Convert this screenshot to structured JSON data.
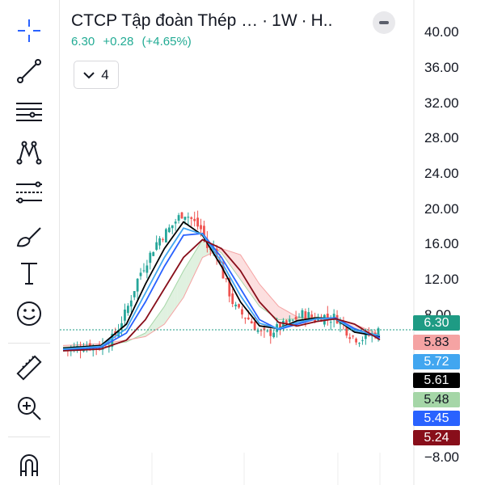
{
  "header": {
    "symbol": "CTCP Tập đoàn Thép …",
    "sep1": "·",
    "interval": "1W",
    "sep2": "·",
    "exchange": "H..",
    "last": "6.30",
    "change": "+0.28",
    "change_pct": "(+4.65%)"
  },
  "indicators_toggle": {
    "count": "4"
  },
  "toolbar": {
    "tools": [
      "crosshair-icon",
      "trend-line-icon",
      "horizontal-lines-icon",
      "pattern-icon",
      "fib-retracement-icon",
      "brush-icon",
      "text-icon",
      "emoji-icon",
      "ruler-icon",
      "zoom-in-icon",
      "magnet-icon"
    ]
  },
  "y_axis": {
    "ticks": [
      "40.00",
      "36.00",
      "32.00",
      "28.00",
      "24.00",
      "20.00",
      "16.00",
      "12.00",
      "8.00",
      "−8.00"
    ]
  },
  "price_labels": [
    {
      "value": "6.30",
      "bg": "#1e9b84",
      "fg": "#ffffff"
    },
    {
      "value": "5.83",
      "bg": "#f5a3a3",
      "fg": "#131722"
    },
    {
      "value": "5.72",
      "bg": "#41a6f0",
      "fg": "#ffffff"
    },
    {
      "value": "5.61",
      "bg": "#000000",
      "fg": "#ffffff"
    },
    {
      "value": "5.48",
      "bg": "#a5d6a7",
      "fg": "#131722"
    },
    {
      "value": "5.45",
      "bg": "#2962ff",
      "fg": "#ffffff"
    },
    {
      "value": "5.24",
      "bg": "#880e1a",
      "fg": "#ffffff"
    }
  ],
  "colors": {
    "up": "#26a69a",
    "down": "#ef5350",
    "cloud_green": "#a5d6a7",
    "cloud_red": "#f5a3a3",
    "ma_black": "#000000",
    "ma_blue": "#2962ff",
    "ma_lightblue": "#41a6f0",
    "ma_maroon": "#880e1a"
  },
  "chart_data": {
    "type": "candlestick",
    "title": "CTCP Tập đoàn Thép …",
    "interval": "1W",
    "last_price": 6.3,
    "ylim": [
      -8,
      40
    ],
    "ticks": [
      40,
      36,
      32,
      28,
      24,
      20,
      16,
      12,
      8,
      -8
    ],
    "close_path": [
      [
        0,
        4.2
      ],
      [
        4,
        4.3
      ],
      [
        8,
        4.6
      ],
      [
        12,
        4.5
      ],
      [
        16,
        5.5
      ],
      [
        20,
        8.5
      ],
      [
        22,
        10.5
      ],
      [
        24,
        12.5
      ],
      [
        27,
        14.5
      ],
      [
        30,
        16.5
      ],
      [
        33,
        17.5
      ],
      [
        36,
        18.8
      ],
      [
        38,
        19.6
      ],
      [
        40,
        19.0
      ],
      [
        42,
        18.2
      ],
      [
        44,
        17.5
      ],
      [
        46,
        15.0
      ],
      [
        48,
        15.8
      ],
      [
        50,
        13.0
      ],
      [
        52,
        11.0
      ],
      [
        54,
        9.0
      ],
      [
        56,
        8.2
      ],
      [
        58,
        7.8
      ],
      [
        60,
        7.0
      ],
      [
        62,
        6.0
      ],
      [
        64,
        5.8
      ],
      [
        66,
        6.2
      ],
      [
        68,
        6.6
      ],
      [
        70,
        6.9
      ],
      [
        72,
        7.2
      ],
      [
        74,
        7.8
      ],
      [
        76,
        8.2
      ],
      [
        78,
        7.9
      ],
      [
        80,
        7.5
      ],
      [
        82,
        8.0
      ],
      [
        84,
        7.6
      ],
      [
        86,
        7.8
      ],
      [
        88,
        7.2
      ],
      [
        90,
        6.0
      ],
      [
        92,
        5.5
      ],
      [
        94,
        5.3
      ],
      [
        96,
        5.8
      ],
      [
        98,
        5.9
      ],
      [
        100,
        6.3
      ]
    ],
    "series": [
      {
        "name": "",
        "color": "#000000",
        "points": [
          [
            0,
            4.3
          ],
          [
            12,
            4.6
          ],
          [
            20,
            7.0
          ],
          [
            26,
            11.5
          ],
          [
            32,
            15.5
          ],
          [
            38,
            18.5
          ],
          [
            44,
            17.0
          ],
          [
            50,
            13.5
          ],
          [
            56,
            9.5
          ],
          [
            62,
            6.8
          ],
          [
            68,
            6.5
          ],
          [
            74,
            7.4
          ],
          [
            80,
            7.7
          ],
          [
            86,
            7.6
          ],
          [
            92,
            6.1
          ],
          [
            100,
            5.61
          ]
        ]
      },
      {
        "name": "",
        "color": "#2962ff",
        "points": [
          [
            0,
            4.1
          ],
          [
            12,
            4.4
          ],
          [
            20,
            6.0
          ],
          [
            26,
            9.5
          ],
          [
            32,
            13.5
          ],
          [
            38,
            17.0
          ],
          [
            44,
            17.2
          ],
          [
            50,
            14.5
          ],
          [
            56,
            11.0
          ],
          [
            62,
            7.5
          ],
          [
            68,
            6.4
          ],
          [
            74,
            7.0
          ],
          [
            80,
            7.6
          ],
          [
            86,
            7.7
          ],
          [
            92,
            6.5
          ],
          [
            100,
            5.45
          ]
        ]
      },
      {
        "name": "",
        "color": "#41a6f0",
        "points": [
          [
            0,
            4.2
          ],
          [
            12,
            4.5
          ],
          [
            20,
            6.5
          ],
          [
            26,
            10.5
          ],
          [
            32,
            14.5
          ],
          [
            38,
            17.8
          ],
          [
            44,
            17.1
          ],
          [
            50,
            14.0
          ],
          [
            56,
            10.2
          ],
          [
            62,
            7.1
          ],
          [
            68,
            6.5
          ],
          [
            74,
            7.2
          ],
          [
            80,
            7.6
          ],
          [
            86,
            7.6
          ],
          [
            92,
            6.3
          ],
          [
            100,
            5.72
          ]
        ]
      },
      {
        "name": "",
        "color": "#880e1a",
        "points": [
          [
            0,
            4.0
          ],
          [
            12,
            4.2
          ],
          [
            20,
            5.2
          ],
          [
            26,
            7.5
          ],
          [
            32,
            11.0
          ],
          [
            38,
            14.5
          ],
          [
            44,
            16.5
          ],
          [
            50,
            15.5
          ],
          [
            56,
            13.0
          ],
          [
            62,
            9.5
          ],
          [
            68,
            7.2
          ],
          [
            74,
            6.8
          ],
          [
            80,
            7.3
          ],
          [
            86,
            7.6
          ],
          [
            92,
            7.0
          ],
          [
            100,
            5.24
          ]
        ]
      }
    ],
    "cloud": {
      "span_a": [
        [
          0,
          4.4
        ],
        [
          12,
          4.6
        ],
        [
          20,
          5.0
        ],
        [
          26,
          6.0
        ],
        [
          32,
          9.0
        ],
        [
          38,
          13.0
        ],
        [
          44,
          16.5
        ],
        [
          50,
          15.0
        ],
        [
          56,
          12.0
        ],
        [
          62,
          9.0
        ],
        [
          68,
          7.5
        ],
        [
          74,
          7.6
        ],
        [
          80,
          7.8
        ],
        [
          86,
          7.7
        ],
        [
          92,
          6.4
        ],
        [
          100,
          5.48
        ]
      ],
      "span_b": [
        [
          0,
          4.6
        ],
        [
          12,
          4.8
        ],
        [
          20,
          5.2
        ],
        [
          26,
          5.6
        ],
        [
          32,
          7.0
        ],
        [
          38,
          10.0
        ],
        [
          44,
          14.5
        ],
        [
          50,
          15.5
        ],
        [
          56,
          14.8
        ],
        [
          62,
          11.5
        ],
        [
          68,
          9.0
        ],
        [
          74,
          7.8
        ],
        [
          80,
          7.6
        ],
        [
          86,
          7.5
        ],
        [
          92,
          7.0
        ],
        [
          100,
          5.83
        ]
      ]
    }
  }
}
